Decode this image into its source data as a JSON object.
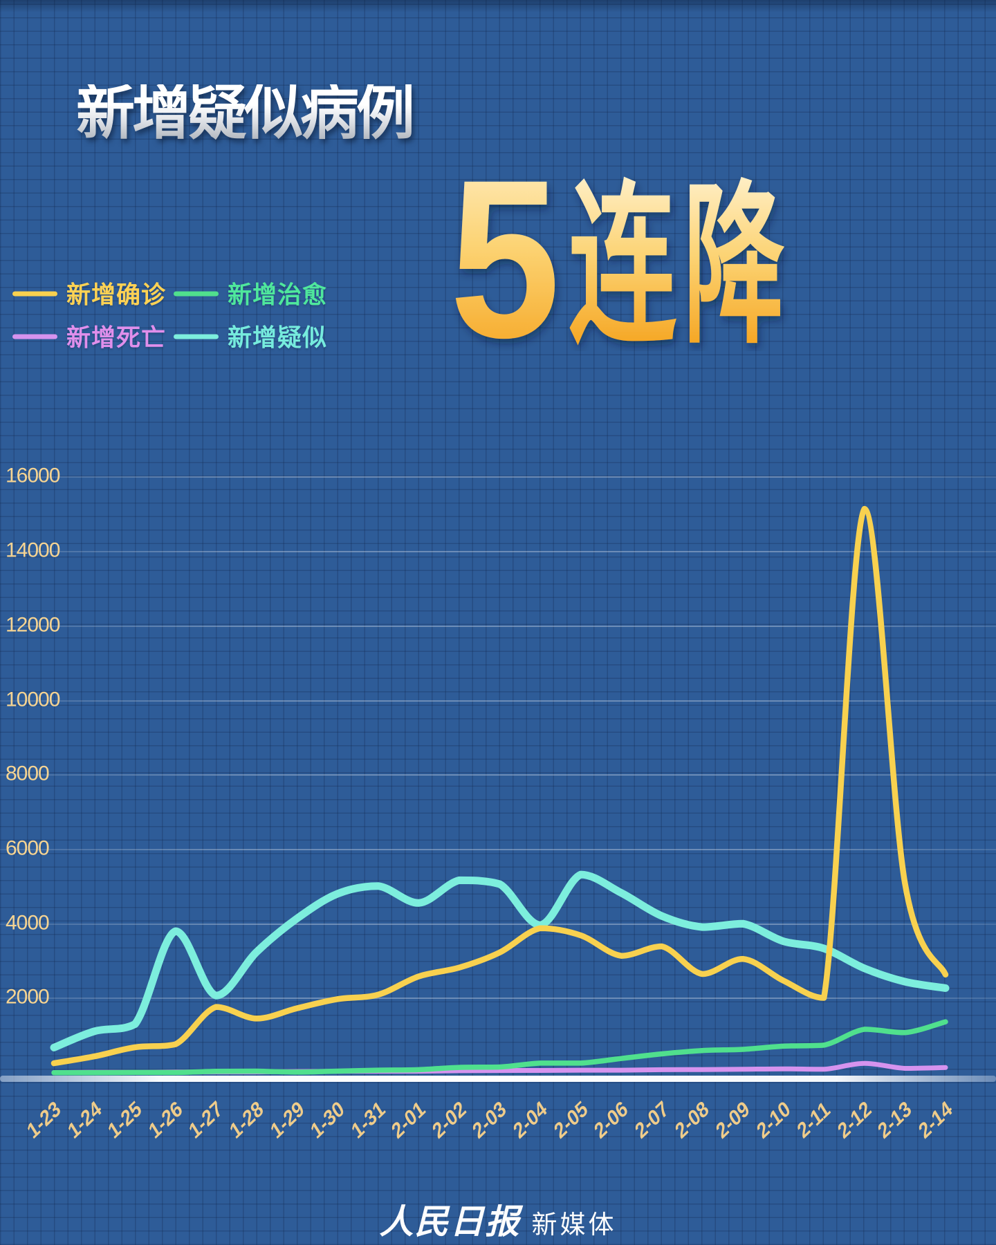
{
  "page": {
    "title": "新增疑似病例",
    "headline": "5连降",
    "headline_chars": [
      "5",
      "连",
      "降"
    ],
    "footer": {
      "brand_script": "人民日报",
      "brand_suffix": "新媒体"
    }
  },
  "colors": {
    "background": "#2e5c98",
    "title_gradient_top": "#ffffff",
    "title_gradient_bottom": "#aab0b8",
    "headline_gradient_top": "#fff1cd",
    "headline_gradient_mid": "#fcd373",
    "headline_gradient_bottom": "#f49d13",
    "axis_label": "#f6d492",
    "x_label": "#efcc8a",
    "baseline_bar": "#ffffff"
  },
  "legend": [
    {
      "key": "new-confirmed",
      "label": "新增确诊",
      "line_color": "#f8d14f",
      "text_color": "#ffd254"
    },
    {
      "key": "new-cured",
      "label": "新增治愈",
      "line_color": "#50e08d",
      "text_color": "#4fe79c"
    },
    {
      "key": "new-deaths",
      "label": "新增死亡",
      "line_color": "#d693ee",
      "text_color": "#e08feb"
    },
    {
      "key": "new-suspected",
      "label": "新增疑似",
      "line_color": "#7deedd",
      "text_color": "#76ebdd"
    }
  ],
  "chart_data": {
    "type": "line",
    "title": "新增疑似病例",
    "annotation": "5连降",
    "x": [
      "1-23",
      "1-24",
      "1-25",
      "1-26",
      "1-27",
      "1-28",
      "1-29",
      "1-30",
      "1-31",
      "2-01",
      "2-02",
      "2-03",
      "2-04",
      "2-05",
      "2-06",
      "2-07",
      "2-08",
      "2-09",
      "2-10",
      "2-11",
      "2-12",
      "2-13",
      "2-14"
    ],
    "series": [
      {
        "key": "new-confirmed",
        "name": "新增确诊",
        "color": "#f8d14f",
        "values": [
          259,
          444,
          688,
          769,
          1771,
          1459,
          1737,
          1982,
          2102,
          2590,
          2829,
          3235,
          3887,
          3694,
          3143,
          3399,
          2656,
          3062,
          2478,
          2015,
          15152,
          5090,
          2641
        ]
      },
      {
        "key": "new-cured",
        "name": "新增治愈",
        "color": "#50e08d",
        "values": [
          6,
          3,
          11,
          9,
          43,
          46,
          21,
          47,
          72,
          85,
          147,
          157,
          262,
          261,
          387,
          510,
          600,
          632,
          716,
          744,
          1171,
          1081,
          1373
        ]
      },
      {
        "key": "new-deaths",
        "name": "新增死亡",
        "color": "#d693ee",
        "values": [
          8,
          16,
          15,
          24,
          26,
          26,
          38,
          43,
          46,
          45,
          57,
          64,
          65,
          73,
          73,
          86,
          89,
          97,
          108,
          97,
          254,
          121,
          143
        ]
      },
      {
        "key": "new-suspected",
        "name": "新增疑似",
        "color": "#7deedd",
        "values": [
          680,
          1118,
          1309,
          3806,
          2077,
          3248,
          4148,
          4812,
          5019,
          4562,
          5173,
          5072,
          3971,
          5328,
          4833,
          4214,
          3916,
          4008,
          3536,
          3342,
          2807,
          2450,
          2277
        ]
      }
    ],
    "yticks": [
      2000,
      4000,
      6000,
      8000,
      10000,
      12000,
      14000,
      16000
    ],
    "ylim": [
      0,
      16600
    ],
    "grid": true,
    "legend_position": "top-left"
  }
}
